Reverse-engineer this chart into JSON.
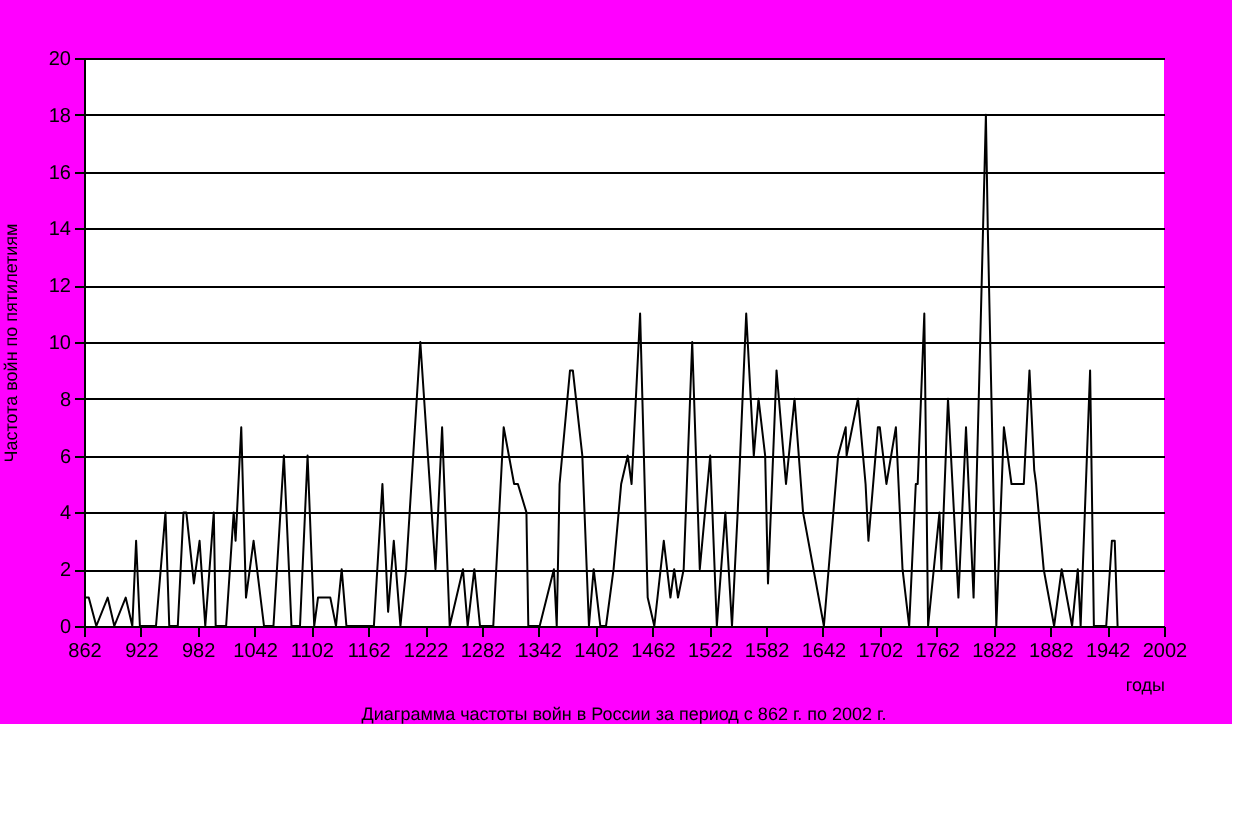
{
  "chart_data": {
    "type": "line",
    "title": "Диаграмма частоты  войн в России за период с 862 г. по 2002 г.",
    "xlabel": "годы",
    "ylabel": "Частота войн по пятилетиям",
    "x": [
      862,
      867,
      875,
      887,
      894,
      906,
      913,
      917,
      921,
      938,
      948,
      952,
      961,
      967,
      970,
      978,
      984,
      990,
      999,
      1001,
      1012,
      1020,
      1022,
      1028,
      1033,
      1041,
      1052,
      1062,
      1073,
      1081,
      1090,
      1098,
      1105,
      1109,
      1122,
      1128,
      1134,
      1139,
      1168,
      1177,
      1183,
      1189,
      1196,
      1202,
      1217,
      1233,
      1240,
      1248,
      1262,
      1267,
      1274,
      1280,
      1294,
      1305,
      1316,
      1320,
      1329,
      1331,
      1343,
      1358,
      1361,
      1364,
      1375,
      1378,
      1388,
      1395,
      1400,
      1407,
      1413,
      1421,
      1429,
      1436,
      1440,
      1449,
      1457,
      1464,
      1474,
      1481,
      1485,
      1489,
      1495,
      1504,
      1512,
      1523,
      1530,
      1539,
      1546,
      1552,
      1561,
      1569,
      1574,
      1581,
      1584,
      1593,
      1603,
      1612,
      1621,
      1643,
      1658,
      1666,
      1667,
      1679,
      1687,
      1690,
      1700,
      1702,
      1709,
      1719,
      1726,
      1733,
      1740,
      1742,
      1749,
      1753,
      1765,
      1767,
      1774,
      1785,
      1793,
      1801,
      1808,
      1814,
      1816,
      1825,
      1833,
      1841,
      1854,
      1860,
      1865,
      1867,
      1875,
      1886,
      1894,
      1905,
      1911,
      1914,
      1924,
      1928,
      1941,
      1947,
      1950,
      1953
    ],
    "values": [
      1,
      1,
      0,
      1,
      0,
      1,
      0,
      3,
      0,
      0,
      4,
      0,
      0,
      4,
      4,
      1.5,
      3,
      0,
      4,
      0,
      0,
      4,
      3,
      7,
      1,
      3,
      0,
      0,
      6,
      0,
      0,
      6,
      0,
      1,
      1,
      0,
      2,
      0,
      0,
      5,
      0.5,
      3,
      0,
      2,
      10,
      2,
      7,
      0,
      2,
      0,
      2,
      0,
      0,
      7,
      5,
      5,
      4,
      0,
      0,
      2,
      0,
      5,
      9,
      9,
      6,
      0,
      2,
      0,
      0,
      2,
      5,
      6,
      5,
      11,
      1,
      0,
      3,
      1,
      2,
      1,
      2,
      10,
      2,
      6,
      0,
      4,
      0,
      4,
      11,
      6,
      8,
      6,
      1.5,
      9,
      5,
      8,
      4,
      0,
      6,
      7,
      6,
      8,
      5,
      3,
      7,
      7,
      5,
      7,
      2,
      0,
      5,
      5,
      11,
      0,
      4,
      2,
      8,
      1,
      7,
      1,
      10,
      18,
      14,
      0,
      7,
      5,
      5,
      9,
      5.5,
      5,
      2,
      0,
      2,
      0,
      2,
      0,
      9,
      0,
      0,
      3,
      3,
      0
    ],
    "color": "#000000",
    "xlim": [
      862,
      2002
    ],
    "xticks": [
      862,
      922,
      982,
      1042,
      1102,
      1162,
      1222,
      1282,
      1342,
      1402,
      1462,
      1522,
      1582,
      1642,
      1702,
      1762,
      1822,
      1882,
      1942,
      2002
    ],
    "ylim": [
      0,
      20
    ],
    "yticks": [
      0,
      2,
      4,
      6,
      8,
      10,
      12,
      14,
      16,
      18,
      20
    ],
    "grid": "y",
    "marker": "none",
    "line_style": "solid"
  }
}
